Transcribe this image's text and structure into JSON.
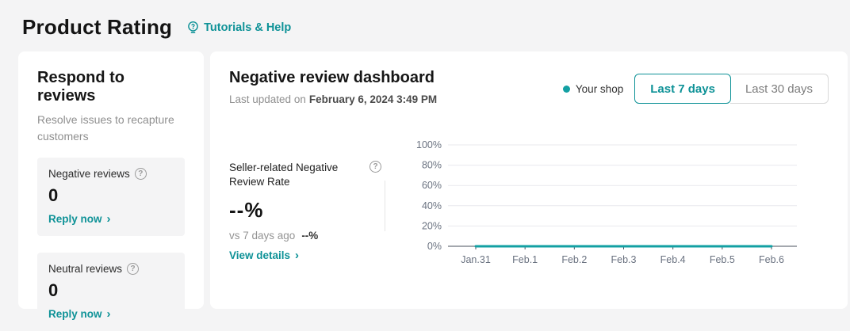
{
  "header": {
    "title": "Product Rating",
    "help_link": "Tutorials & Help"
  },
  "icons": {
    "question_mark": "?",
    "chevron_right": "›"
  },
  "respond_panel": {
    "title": "Respond to reviews",
    "subtitle": "Resolve issues to recapture customers",
    "cards": [
      {
        "label": "Negative reviews",
        "value": "0",
        "action": "Reply now"
      },
      {
        "label": "Neutral reviews",
        "value": "0",
        "action": "Reply now"
      }
    ]
  },
  "dashboard": {
    "title": "Negative review dashboard",
    "last_updated_prefix": "Last updated on",
    "last_updated_value": "February 6, 2024 3:49 PM",
    "legend": {
      "label": "Your shop",
      "color": "#13a0a3"
    },
    "range_buttons": [
      {
        "label": "Last 7 days",
        "selected": true
      },
      {
        "label": "Last 30 days",
        "selected": false
      }
    ],
    "metric": {
      "label": "Seller-related Negative Review Rate",
      "value": "--%",
      "compare_prefix": "vs 7 days ago",
      "compare_value": "--%",
      "action": "View details"
    }
  },
  "colors": {
    "accent_teal": "#0e9297",
    "line_teal": "#13a0a3",
    "page_bg": "#f4f4f5",
    "grid_line": "#e9e9ee",
    "axis_line": "#4a505e",
    "axis_label": "#6a7280"
  },
  "chart_data": {
    "type": "line",
    "title": "Seller-related Negative Review Rate",
    "categories": [
      "Jan.31",
      "Feb.1",
      "Feb.2",
      "Feb.3",
      "Feb.4",
      "Feb.5",
      "Feb.6"
    ],
    "series": [
      {
        "name": "Your shop",
        "values": [
          0,
          0,
          0,
          0,
          0,
          0,
          0
        ],
        "color": "#13a0a3"
      }
    ],
    "ylim": [
      0,
      100
    ],
    "yticks": [
      0,
      20,
      40,
      60,
      80,
      100
    ],
    "ytick_labels": [
      "0%",
      "20%",
      "40%",
      "60%",
      "80%",
      "100%"
    ],
    "xlabel": "",
    "ylabel": "",
    "grid": true,
    "legend_position": "top-right"
  }
}
